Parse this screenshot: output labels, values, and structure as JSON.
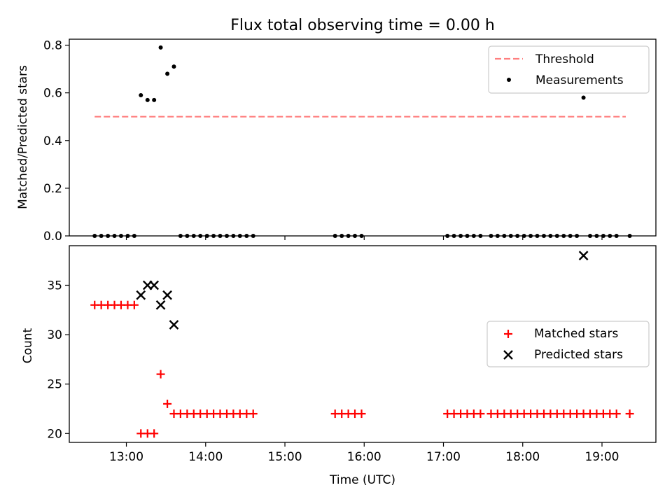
{
  "figure": {
    "title": "Flux total observing time = 0.00 h"
  },
  "chart_data": [
    {
      "type": "scatter",
      "ylabel": "Matched/Predicted stars",
      "xlim": [
        12.28,
        19.68
      ],
      "ylim": [
        0.0,
        0.825
      ],
      "yticks": [
        0.0,
        0.2,
        0.4,
        0.6,
        0.8
      ],
      "ytick_labels": [
        "0.0",
        "0.2",
        "0.4",
        "0.6",
        "0.8"
      ],
      "legend_position": "top-right",
      "threshold": {
        "name": "Threshold",
        "value": 0.5,
        "x_range": [
          12.6,
          19.3
        ],
        "color": "#ff7f7f",
        "style": "dashed"
      },
      "series": [
        {
          "name": "Measurements",
          "color": "#000000",
          "marker": "dot",
          "x": [
            12.6,
            12.683,
            12.767,
            12.85,
            12.933,
            13.017,
            13.1,
            13.183,
            13.267,
            13.35,
            13.433,
            13.517,
            13.6,
            13.683,
            13.767,
            13.85,
            13.933,
            14.017,
            14.1,
            14.183,
            14.267,
            14.35,
            14.433,
            14.517,
            14.6,
            15.633,
            15.717,
            15.8,
            15.883,
            15.967,
            17.05,
            17.133,
            17.217,
            17.3,
            17.383,
            17.467,
            17.6,
            17.683,
            17.767,
            17.85,
            17.933,
            18.017,
            18.1,
            18.183,
            18.267,
            18.35,
            18.433,
            18.517,
            18.6,
            18.683,
            18.767,
            18.85,
            18.933,
            19.017,
            19.1,
            19.183,
            19.35
          ],
          "y": [
            0,
            0,
            0,
            0,
            0,
            0,
            0,
            0.59,
            0.57,
            0.57,
            0.79,
            0.68,
            0.71,
            0,
            0,
            0,
            0,
            0,
            0,
            0,
            0,
            0,
            0,
            0,
            0,
            0,
            0,
            0,
            0,
            0,
            0,
            0,
            0,
            0,
            0,
            0,
            0,
            0,
            0,
            0,
            0,
            0,
            0,
            0,
            0,
            0,
            0,
            0,
            0,
            0,
            0.58,
            0,
            0,
            0,
            0,
            0,
            0
          ]
        }
      ]
    },
    {
      "type": "scatter",
      "ylabel": "Count",
      "xlabel": "Time (UTC)",
      "xlim": [
        12.28,
        19.68
      ],
      "ylim": [
        19.1,
        39.0
      ],
      "yticks": [
        20,
        25,
        30,
        35
      ],
      "ytick_labels": [
        "20",
        "25",
        "30",
        "35"
      ],
      "xticks": [
        13,
        14,
        15,
        16,
        17,
        18,
        19
      ],
      "xtick_labels": [
        "13:00",
        "14:00",
        "15:00",
        "16:00",
        "17:00",
        "18:00",
        "19:00"
      ],
      "legend_position": "center-right",
      "series": [
        {
          "name": "Matched stars",
          "color": "#ff0000",
          "marker": "plus",
          "x": [
            12.6,
            12.683,
            12.767,
            12.85,
            12.933,
            13.017,
            13.1,
            13.183,
            13.267,
            13.35,
            13.433,
            13.517,
            13.6,
            13.683,
            13.767,
            13.85,
            13.933,
            14.017,
            14.1,
            14.183,
            14.267,
            14.35,
            14.433,
            14.517,
            14.6,
            15.633,
            15.717,
            15.8,
            15.883,
            15.967,
            17.05,
            17.133,
            17.217,
            17.3,
            17.383,
            17.467,
            17.6,
            17.683,
            17.767,
            17.85,
            17.933,
            18.017,
            18.1,
            18.183,
            18.267,
            18.35,
            18.433,
            18.517,
            18.6,
            18.683,
            18.767,
            18.85,
            18.933,
            19.017,
            19.1,
            19.183,
            19.35
          ],
          "y": [
            33,
            33,
            33,
            33,
            33,
            33,
            33,
            20,
            20,
            20,
            26,
            23,
            22,
            22,
            22,
            22,
            22,
            22,
            22,
            22,
            22,
            22,
            22,
            22,
            22,
            22,
            22,
            22,
            22,
            22,
            22,
            22,
            22,
            22,
            22,
            22,
            22,
            22,
            22,
            22,
            22,
            22,
            22,
            22,
            22,
            22,
            22,
            22,
            22,
            22,
            22,
            22,
            22,
            22,
            22,
            22,
            22
          ]
        },
        {
          "name": "Predicted stars",
          "color": "#000000",
          "marker": "x",
          "x": [
            13.183,
            13.267,
            13.35,
            13.433,
            13.517,
            13.6,
            18.767
          ],
          "y": [
            34,
            35,
            35,
            33,
            34,
            31,
            38
          ]
        }
      ]
    }
  ]
}
